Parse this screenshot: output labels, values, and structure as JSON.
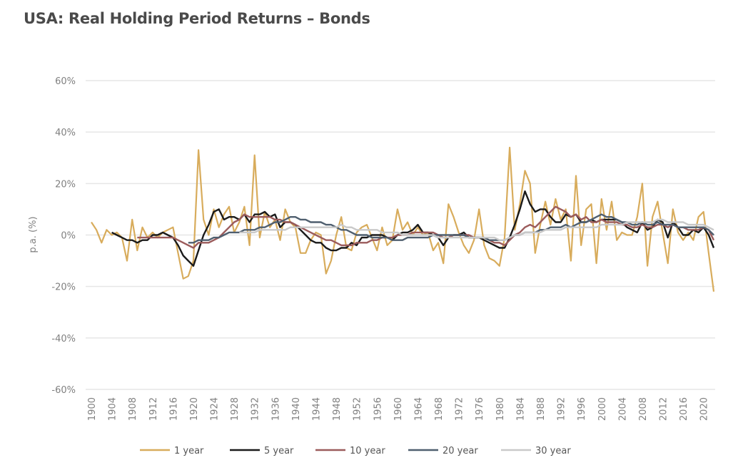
{
  "title": "USA: Real Holding Period Returns – Bonds",
  "chart_data": {
    "type": "line",
    "title": "USA: Real Holding Period Returns – Bonds",
    "xlabel": "",
    "ylabel": "p.a. (%)",
    "xlim": [
      1900,
      2022
    ],
    "ylim": [
      -60,
      60
    ],
    "yticks": [
      60,
      40,
      20,
      0,
      -20,
      -40,
      -60
    ],
    "ytick_labels": [
      "60%",
      "40%",
      "20%",
      "0%",
      "-20%",
      "-40%",
      "-60%"
    ],
    "xticks": [
      1900,
      1904,
      1908,
      1912,
      1916,
      1920,
      1924,
      1928,
      1932,
      1936,
      1940,
      1944,
      1948,
      1952,
      1956,
      1960,
      1964,
      1968,
      1972,
      1976,
      1980,
      1984,
      1988,
      1992,
      1996,
      2000,
      2004,
      2008,
      2012,
      2016,
      2020
    ],
    "grid": true,
    "legend_position": "bottom",
    "series": [
      {
        "name": "1 year",
        "color": "#d8ac5c",
        "start_year": 1900,
        "values": [
          5,
          2,
          -3,
          2,
          0,
          1,
          -1,
          -10,
          6,
          -6,
          3,
          -1,
          1,
          -1,
          1,
          2,
          3,
          -7,
          -17,
          -16,
          -10,
          33,
          6,
          0,
          10,
          3,
          8,
          11,
          1,
          5,
          11,
          -4,
          31,
          -1,
          9,
          3,
          6,
          -2,
          10,
          5,
          3,
          -7,
          -7,
          -2,
          1,
          0,
          -15,
          -10,
          0,
          7,
          -5,
          -6,
          1,
          3,
          4,
          -1,
          -6,
          3,
          -4,
          -2,
          10,
          2,
          5,
          0,
          3,
          0,
          1,
          -6,
          -3,
          -11,
          12,
          7,
          1,
          -4,
          -7,
          -2,
          10,
          -4,
          -9,
          -10,
          -12,
          -1,
          34,
          2,
          12,
          25,
          20,
          -7,
          4,
          13,
          4,
          14,
          6,
          10,
          -10,
          23,
          -4,
          10,
          12,
          -11,
          14,
          2,
          13,
          -2,
          1,
          0,
          0,
          7,
          20,
          -12,
          7,
          13,
          1,
          -11,
          10,
          1,
          -2,
          1,
          -2,
          7,
          9,
          -7,
          -22
        ]
      },
      {
        "name": "5 year",
        "color": "#1a1a1a",
        "start_year": 1904,
        "values": [
          1,
          0,
          -1,
          -2,
          -2,
          -3,
          -2,
          -2,
          0,
          0,
          1,
          0,
          -1,
          -4,
          -8,
          -10,
          -12,
          -6,
          0,
          4,
          9,
          10,
          6,
          7,
          7,
          6,
          8,
          5,
          8,
          8,
          9,
          7,
          8,
          3,
          5,
          5,
          4,
          2,
          0,
          -2,
          -3,
          -3,
          -5,
          -6,
          -6,
          -5,
          -5,
          -3,
          -4,
          -1,
          -1,
          0,
          0,
          0,
          -1,
          -2,
          0,
          1,
          1,
          2,
          4,
          1,
          1,
          0,
          -1,
          -4,
          -1,
          0,
          0,
          1,
          -1,
          -1,
          -1,
          -2,
          -3,
          -4,
          -5,
          -5,
          -1,
          4,
          10,
          17,
          12,
          9,
          10,
          10,
          7,
          5,
          5,
          8,
          7,
          8,
          5,
          5,
          6,
          5,
          6,
          6,
          6,
          6,
          5,
          3,
          2,
          1,
          5,
          2,
          3,
          6,
          5,
          -1,
          5,
          3,
          0,
          0,
          2,
          1,
          3,
          0,
          -5
        ]
      },
      {
        "name": "10 year",
        "color": "#9b5b5b",
        "start_year": 1909,
        "values": [
          -1,
          -1,
          -1,
          -1,
          -1,
          -1,
          -1,
          -1,
          -2,
          -3,
          -4,
          -5,
          -3,
          -3,
          -3,
          -2,
          -1,
          1,
          3,
          5,
          6,
          8,
          7,
          7,
          7,
          7,
          7,
          6,
          6,
          5,
          5,
          4,
          3,
          2,
          1,
          0,
          -1,
          -2,
          -2,
          -3,
          -4,
          -4,
          -4,
          -3,
          -3,
          -3,
          -2,
          -2,
          -1,
          -1,
          -1,
          0,
          0,
          0,
          1,
          1,
          1,
          1,
          1,
          0,
          -1,
          -1,
          0,
          0,
          0,
          0,
          -1,
          -1,
          -1,
          -2,
          -3,
          -3,
          -4,
          -2,
          0,
          1,
          3,
          4,
          3,
          5,
          7,
          9,
          11,
          10,
          9,
          7,
          8,
          6,
          7,
          5,
          5,
          6,
          5,
          5,
          5,
          4,
          4,
          3,
          3,
          4,
          3,
          3,
          4,
          4,
          3,
          4,
          3,
          3,
          2,
          2,
          2,
          3,
          2,
          -2
        ]
      },
      {
        "name": "20 year",
        "color": "#4f5f6f",
        "start_year": 1919,
        "values": [
          -3,
          -3,
          -2,
          -2,
          -2,
          -1,
          -1,
          0,
          1,
          1,
          1,
          2,
          2,
          2,
          3,
          3,
          4,
          5,
          5,
          6,
          7,
          7,
          6,
          6,
          5,
          5,
          5,
          4,
          4,
          3,
          2,
          2,
          1,
          0,
          0,
          0,
          -1,
          -1,
          -1,
          -1,
          -2,
          -2,
          -2,
          -1,
          -1,
          -1,
          -1,
          -1,
          0,
          0,
          0,
          0,
          0,
          0,
          0,
          -1,
          -1,
          -1,
          -1,
          -2,
          -2,
          -2,
          -2,
          -1,
          0,
          0,
          1,
          1,
          1,
          2,
          2,
          3,
          3,
          3,
          4,
          3,
          4,
          5,
          5,
          6,
          7,
          8,
          7,
          7,
          6,
          5,
          5,
          4,
          4,
          5,
          4,
          4,
          5,
          4,
          4,
          4,
          3,
          3,
          3,
          3,
          3,
          3,
          2,
          0
        ]
      },
      {
        "name": "30 year",
        "color": "#c9c9c9",
        "start_year": 1929,
        "values": [
          1,
          1,
          1,
          1,
          2,
          2,
          2,
          2,
          2,
          2,
          3,
          3,
          3,
          3,
          3,
          3,
          3,
          3,
          3,
          3,
          4,
          3,
          3,
          2,
          2,
          2,
          2,
          2,
          1,
          1,
          1,
          1,
          0,
          0,
          0,
          0,
          0,
          0,
          0,
          -1,
          -1,
          -1,
          -1,
          -1,
          -1,
          -1,
          -1,
          -1,
          -1,
          -1,
          -1,
          -2,
          -2,
          -1,
          0,
          0,
          1,
          1,
          1,
          1,
          2,
          2,
          2,
          2,
          3,
          3,
          3,
          3,
          3,
          3,
          3,
          4,
          4,
          4,
          4,
          4,
          5,
          5,
          5,
          5,
          5,
          5,
          6,
          6,
          5,
          5,
          5,
          5,
          4,
          4,
          4,
          4,
          3,
          2
        ]
      }
    ]
  }
}
